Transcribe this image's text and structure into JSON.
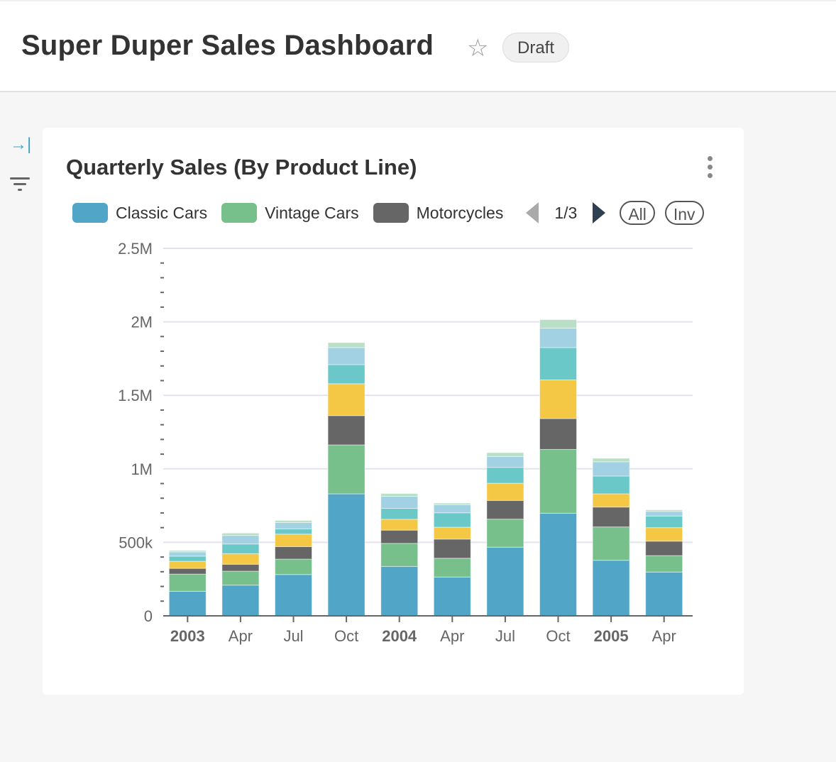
{
  "header": {
    "title": "Super Duper Sales Dashboard",
    "status_badge": "Draft",
    "favorite_icon": "star-icon"
  },
  "sidebar": {
    "expand_icon": "expand-right-icon",
    "filter_icon": "filter-icon"
  },
  "card": {
    "title": "Quarterly Sales (By Product Line)",
    "menu_icon": "kebab-menu-icon"
  },
  "legend": {
    "items": [
      {
        "label": "Classic Cars",
        "color": "#51a5c6"
      },
      {
        "label": "Vintage Cars",
        "color": "#77c08c"
      },
      {
        "label": "Motorcycles",
        "color": "#666666"
      }
    ],
    "page": "1/3",
    "all_label": "All",
    "inv_label": "Inv"
  },
  "chart_data": {
    "type": "bar",
    "stacked": true,
    "title": "Quarterly Sales (By Product Line)",
    "xlabel": "",
    "ylabel": "",
    "ylim": [
      0,
      2500000
    ],
    "grid": true,
    "legend_position": "top",
    "yticks": [
      {
        "value": 0,
        "label": "0"
      },
      {
        "value": 500000,
        "label": "500k"
      },
      {
        "value": 1000000,
        "label": "1M"
      },
      {
        "value": 1500000,
        "label": "1.5M"
      },
      {
        "value": 2000000,
        "label": "2M"
      },
      {
        "value": 2500000,
        "label": "2.5M"
      }
    ],
    "categories": [
      "2003",
      "Apr",
      "Jul",
      "Oct",
      "2004",
      "Apr",
      "Jul",
      "Oct",
      "2005",
      "Apr"
    ],
    "bold_categories": [
      "2003",
      "2004",
      "2005"
    ],
    "series": [
      {
        "name": "Classic Cars",
        "color": "#51a5c6",
        "values": [
          167000,
          209000,
          281000,
          830000,
          336000,
          264000,
          467000,
          698000,
          378000,
          298000
        ]
      },
      {
        "name": "Vintage Cars",
        "color": "#77c08c",
        "values": [
          117000,
          95000,
          105000,
          333000,
          157000,
          128000,
          191000,
          434000,
          227000,
          112000
        ]
      },
      {
        "name": "Motorcycles",
        "color": "#666666",
        "values": [
          39000,
          47000,
          85000,
          199000,
          90000,
          130000,
          127000,
          210000,
          135000,
          98000
        ]
      },
      {
        "color": "#f4c744",
        "values": [
          48000,
          72000,
          85000,
          217000,
          74000,
          81000,
          117000,
          263000,
          90000,
          92000
        ]
      },
      {
        "color": "#6bc8c9",
        "values": [
          35000,
          66000,
          36000,
          130000,
          74000,
          98000,
          108000,
          220000,
          121000,
          79000
        ]
      },
      {
        "color": "#a1d1e2",
        "values": [
          29000,
          58000,
          43000,
          116000,
          82000,
          55000,
          74000,
          132000,
          97000,
          32000
        ]
      },
      {
        "color": "#b9e0c6",
        "values": [
          10000,
          16000,
          14000,
          34000,
          19000,
          11000,
          26000,
          58000,
          24000,
          10000
        ]
      }
    ]
  }
}
